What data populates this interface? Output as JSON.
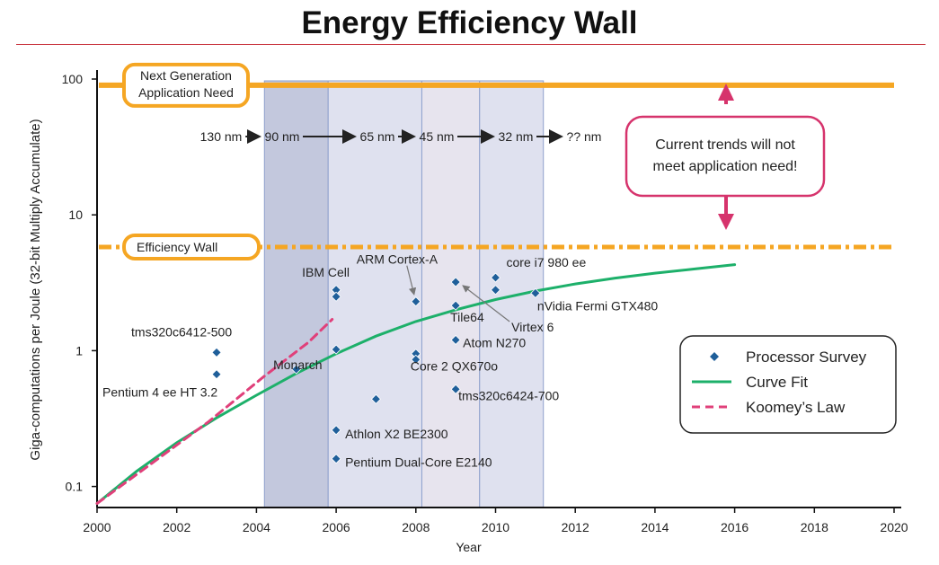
{
  "title": "Energy Efficiency Wall",
  "colors": {
    "wall": "#f5a623",
    "curve": "#1db06a",
    "koomey": "#e0407a",
    "marker": "#1f5f9a",
    "band_dark": "#c3c8dd",
    "band_light": "#dfe1ef",
    "callout": "#d6336c",
    "title_rule": "#c8323c"
  },
  "chart_data": {
    "type": "scatter",
    "title": "Energy Efficiency Wall",
    "xlabel": "Year",
    "ylabel": "Giga-computations per Joule (32-bit Multiply Accumulate)",
    "xlim": [
      2000,
      2020
    ],
    "ylim": [
      0.07,
      100
    ],
    "yscale": "log",
    "x_ticks": [
      "2000",
      "2002",
      "2004",
      "2006",
      "2008",
      "2010",
      "2012",
      "2014",
      "2016",
      "2018",
      "2020"
    ],
    "y_ticks": [
      {
        "value": 100,
        "label": "100"
      },
      {
        "value": 10,
        "label": "10"
      },
      {
        "value": 1,
        "label": "1"
      },
      {
        "value": 0.1,
        "label": "0.1"
      }
    ],
    "grid": false,
    "legend": {
      "position": "bottom-right",
      "entries": [
        "Processor Survey",
        "Curve Fit",
        "Koomey’s Law"
      ]
    },
    "reference_lines": [
      {
        "name": "Next Generation Application Need",
        "label_lines": [
          "Next Generation",
          "Application Need"
        ],
        "y": 90,
        "style": "solid"
      },
      {
        "name": "Efficiency Wall",
        "label_lines": [
          "Efficiency Wall"
        ],
        "y": 5.8,
        "style": "dash-dot"
      }
    ],
    "process_nodes": {
      "labels": [
        "130 nm",
        "90 nm",
        "65 nm",
        "45 nm",
        "32 nm",
        "?? nm"
      ],
      "bands": [
        {
          "x_start": 2004.2,
          "x_end": 2005.8,
          "shade": "dark"
        },
        {
          "x_start": 2005.8,
          "x_end": 2008.15,
          "shade": "mid"
        },
        {
          "x_start": 2008.15,
          "x_end": 2009.6,
          "shade": "light"
        },
        {
          "x_start": 2009.6,
          "x_end": 2011.2,
          "shade": "mid"
        }
      ]
    },
    "callout": {
      "lines": [
        "Current trends will not",
        "meet application need!"
      ]
    },
    "series": [
      {
        "name": "Processor Survey",
        "kind": "scatter",
        "points": [
          {
            "x": 2003,
            "y": 0.97,
            "label": "tms320c6412-500"
          },
          {
            "x": 2003,
            "y": 0.67,
            "label": "Pentium 4 ee HT 3.2"
          },
          {
            "x": 2005,
            "y": 0.73
          },
          {
            "x": 2006,
            "y": 2.8
          },
          {
            "x": 2006,
            "y": 2.5,
            "label": "IBM Cell"
          },
          {
            "x": 2006,
            "y": 1.02,
            "label": "Monarch"
          },
          {
            "x": 2006,
            "y": 0.26,
            "label": "Athlon X2 BE2300"
          },
          {
            "x": 2006,
            "y": 0.16,
            "label": "Pentium Dual-Core E2140"
          },
          {
            "x": 2007,
            "y": 0.44
          },
          {
            "x": 2008,
            "y": 2.3,
            "label": "ARM Cortex-A"
          },
          {
            "x": 2008,
            "y": 0.95
          },
          {
            "x": 2008,
            "y": 0.86,
            "label": "Core 2 QX670o"
          },
          {
            "x": 2009,
            "y": 3.2,
            "label": "Virtex 6"
          },
          {
            "x": 2009,
            "y": 2.15,
            "label": "Tile64"
          },
          {
            "x": 2009,
            "y": 1.2,
            "label": "Atom N270"
          },
          {
            "x": 2009,
            "y": 0.52,
            "label": "tms320c6424-700"
          },
          {
            "x": 2010,
            "y": 3.45,
            "label": "core i7 980 ee"
          },
          {
            "x": 2010,
            "y": 2.8
          },
          {
            "x": 2011,
            "y": 2.65,
            "label": "nVidia Fermi GTX480"
          }
        ]
      },
      {
        "name": "Curve Fit",
        "kind": "line",
        "x": [
          2000,
          2001,
          2002,
          2003,
          2004,
          2005,
          2006,
          2007,
          2008,
          2009,
          2010,
          2011,
          2012,
          2013,
          2014,
          2015,
          2016
        ],
        "y": [
          0.075,
          0.13,
          0.21,
          0.32,
          0.47,
          0.68,
          0.95,
          1.28,
          1.64,
          2.0,
          2.38,
          2.75,
          3.1,
          3.42,
          3.72,
          4.0,
          4.3
        ]
      },
      {
        "name": "Koomey’s Law",
        "kind": "line",
        "x": [
          2000,
          2002.8,
          2004.2,
          2005.3,
          2005.9
        ],
        "y": [
          0.075,
          0.3,
          0.65,
          1.15,
          1.7
        ]
      }
    ]
  }
}
